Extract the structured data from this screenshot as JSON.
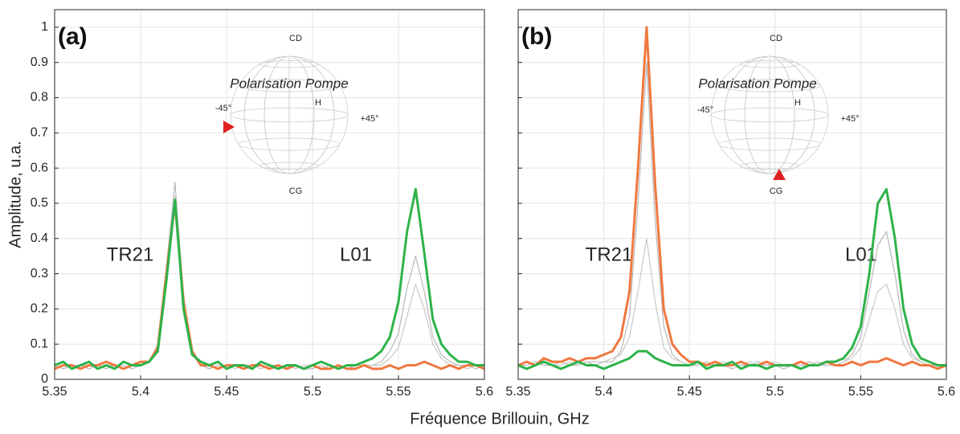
{
  "chart_data": [
    {
      "type": "line",
      "panel_label": "(a)",
      "annotations": {
        "peak1": "TR21",
        "peak2": "L01",
        "sphere_title": "Polarisation Pompe",
        "top": "CD",
        "bottom": "CG",
        "h": "H",
        "minus45": "-45°",
        "plus45": "+45°"
      },
      "x": [
        5.35,
        5.355,
        5.36,
        5.365,
        5.37,
        5.375,
        5.38,
        5.385,
        5.39,
        5.395,
        5.4,
        5.405,
        5.41,
        5.415,
        5.42,
        5.425,
        5.43,
        5.435,
        5.44,
        5.445,
        5.45,
        5.455,
        5.46,
        5.465,
        5.47,
        5.475,
        5.48,
        5.485,
        5.49,
        5.495,
        5.5,
        5.505,
        5.51,
        5.515,
        5.52,
        5.525,
        5.53,
        5.535,
        5.54,
        5.545,
        5.55,
        5.555,
        5.56,
        5.565,
        5.57,
        5.575,
        5.58,
        5.585,
        5.59,
        5.595,
        5.6
      ],
      "series": [
        {
          "color": "#b8b8b8",
          "values": [
            0.04,
            0.03,
            0.04,
            0.04,
            0.03,
            0.04,
            0.03,
            0.04,
            0.04,
            0.03,
            0.04,
            0.05,
            0.1,
            0.32,
            0.56,
            0.24,
            0.07,
            0.04,
            0.03,
            0.04,
            0.03,
            0.04,
            0.03,
            0.04,
            0.03,
            0.04,
            0.04,
            0.03,
            0.04,
            0.03,
            0.03,
            0.04,
            0.03,
            0.04,
            0.03,
            0.04,
            0.04,
            0.04,
            0.05,
            0.08,
            0.13,
            0.26,
            0.35,
            0.25,
            0.12,
            0.07,
            0.05,
            0.04,
            0.04,
            0.03,
            0.04
          ]
        },
        {
          "color": "#c8c8c8",
          "values": [
            0.03,
            0.04,
            0.03,
            0.04,
            0.04,
            0.03,
            0.04,
            0.04,
            0.03,
            0.04,
            0.04,
            0.05,
            0.09,
            0.3,
            0.52,
            0.22,
            0.07,
            0.04,
            0.04,
            0.03,
            0.04,
            0.03,
            0.04,
            0.04,
            0.03,
            0.04,
            0.03,
            0.04,
            0.03,
            0.04,
            0.04,
            0.03,
            0.04,
            0.03,
            0.04,
            0.03,
            0.04,
            0.04,
            0.04,
            0.06,
            0.09,
            0.18,
            0.27,
            0.2,
            0.1,
            0.06,
            0.04,
            0.04,
            0.03,
            0.04,
            0.04
          ]
        },
        {
          "color": "#f07840",
          "values": [
            0.03,
            0.04,
            0.04,
            0.03,
            0.04,
            0.04,
            0.05,
            0.04,
            0.03,
            0.04,
            0.05,
            0.05,
            0.09,
            0.3,
            0.5,
            0.22,
            0.08,
            0.04,
            0.04,
            0.03,
            0.04,
            0.04,
            0.03,
            0.04,
            0.04,
            0.03,
            0.04,
            0.03,
            0.04,
            0.03,
            0.04,
            0.03,
            0.03,
            0.04,
            0.03,
            0.03,
            0.04,
            0.03,
            0.03,
            0.04,
            0.03,
            0.04,
            0.04,
            0.05,
            0.04,
            0.03,
            0.04,
            0.03,
            0.04,
            0.04,
            0.03
          ]
        },
        {
          "color": "#2db34a",
          "values": [
            0.04,
            0.05,
            0.03,
            0.04,
            0.05,
            0.03,
            0.04,
            0.03,
            0.05,
            0.04,
            0.04,
            0.05,
            0.08,
            0.28,
            0.51,
            0.2,
            0.07,
            0.05,
            0.04,
            0.05,
            0.03,
            0.04,
            0.04,
            0.03,
            0.05,
            0.04,
            0.03,
            0.04,
            0.04,
            0.03,
            0.04,
            0.05,
            0.04,
            0.03,
            0.04,
            0.04,
            0.05,
            0.06,
            0.08,
            0.12,
            0.22,
            0.42,
            0.54,
            0.36,
            0.17,
            0.1,
            0.07,
            0.05,
            0.05,
            0.04,
            0.04
          ]
        }
      ],
      "xlim": [
        5.35,
        5.6
      ],
      "xticks": [
        5.35,
        5.4,
        5.45,
        5.5,
        5.55,
        5.6
      ],
      "ylim": [
        0,
        1.05
      ],
      "yticks": [
        0,
        0.1,
        0.2,
        0.3,
        0.4,
        0.5,
        0.6,
        0.7,
        0.8,
        0.9,
        1
      ],
      "grid": true
    },
    {
      "type": "line",
      "panel_label": "(b)",
      "annotations": {
        "peak1": "TR21",
        "peak2": "L01",
        "sphere_title": "Polarisation Pompe",
        "top": "CD",
        "bottom": "CG",
        "h": "H",
        "minus45": "-45°",
        "plus45": "+45°"
      },
      "x": [
        5.35,
        5.355,
        5.36,
        5.365,
        5.37,
        5.375,
        5.38,
        5.385,
        5.39,
        5.395,
        5.4,
        5.405,
        5.41,
        5.415,
        5.42,
        5.425,
        5.43,
        5.435,
        5.44,
        5.445,
        5.45,
        5.455,
        5.46,
        5.465,
        5.47,
        5.475,
        5.48,
        5.485,
        5.49,
        5.495,
        5.5,
        5.505,
        5.51,
        5.515,
        5.52,
        5.525,
        5.53,
        5.535,
        5.54,
        5.545,
        5.55,
        5.555,
        5.56,
        5.565,
        5.57,
        5.575,
        5.58,
        5.585,
        5.59,
        5.595,
        5.6
      ],
      "series": [
        {
          "color": "#b8b8b8",
          "values": [
            0.04,
            0.04,
            0.05,
            0.04,
            0.04,
            0.05,
            0.04,
            0.04,
            0.05,
            0.04,
            0.05,
            0.05,
            0.08,
            0.18,
            0.5,
            0.9,
            0.45,
            0.15,
            0.07,
            0.05,
            0.04,
            0.04,
            0.05,
            0.04,
            0.04,
            0.03,
            0.04,
            0.04,
            0.05,
            0.04,
            0.04,
            0.03,
            0.04,
            0.04,
            0.05,
            0.04,
            0.04,
            0.04,
            0.05,
            0.07,
            0.12,
            0.25,
            0.38,
            0.42,
            0.3,
            0.14,
            0.07,
            0.05,
            0.04,
            0.04,
            0.04
          ]
        },
        {
          "color": "#c8c8c8",
          "values": [
            0.04,
            0.05,
            0.04,
            0.05,
            0.04,
            0.04,
            0.05,
            0.04,
            0.05,
            0.05,
            0.05,
            0.06,
            0.07,
            0.12,
            0.25,
            0.4,
            0.22,
            0.09,
            0.06,
            0.05,
            0.04,
            0.05,
            0.04,
            0.04,
            0.05,
            0.04,
            0.04,
            0.05,
            0.04,
            0.04,
            0.05,
            0.04,
            0.04,
            0.04,
            0.04,
            0.05,
            0.04,
            0.04,
            0.05,
            0.06,
            0.09,
            0.17,
            0.25,
            0.27,
            0.2,
            0.1,
            0.06,
            0.05,
            0.04,
            0.04,
            0.04
          ]
        },
        {
          "color": "#f07840",
          "values": [
            0.04,
            0.05,
            0.04,
            0.06,
            0.05,
            0.05,
            0.06,
            0.05,
            0.06,
            0.06,
            0.07,
            0.08,
            0.12,
            0.25,
            0.6,
            1.0,
            0.55,
            0.2,
            0.1,
            0.07,
            0.05,
            0.05,
            0.04,
            0.05,
            0.04,
            0.04,
            0.05,
            0.04,
            0.04,
            0.05,
            0.04,
            0.04,
            0.04,
            0.05,
            0.04,
            0.04,
            0.05,
            0.04,
            0.04,
            0.05,
            0.04,
            0.05,
            0.05,
            0.06,
            0.05,
            0.04,
            0.05,
            0.04,
            0.04,
            0.03,
            0.04
          ]
        },
        {
          "color": "#2db34a",
          "values": [
            0.04,
            0.03,
            0.04,
            0.05,
            0.04,
            0.03,
            0.04,
            0.05,
            0.04,
            0.04,
            0.03,
            0.04,
            0.05,
            0.06,
            0.08,
            0.08,
            0.06,
            0.05,
            0.04,
            0.04,
            0.04,
            0.05,
            0.03,
            0.04,
            0.04,
            0.05,
            0.03,
            0.04,
            0.04,
            0.03,
            0.04,
            0.04,
            0.04,
            0.03,
            0.04,
            0.04,
            0.05,
            0.05,
            0.06,
            0.09,
            0.15,
            0.3,
            0.5,
            0.54,
            0.4,
            0.2,
            0.1,
            0.06,
            0.05,
            0.04,
            0.04
          ]
        }
      ],
      "xlim": [
        5.35,
        5.6
      ],
      "xticks": [
        5.35,
        5.4,
        5.45,
        5.5,
        5.55,
        5.6
      ],
      "ylim": [
        0,
        1.05
      ],
      "yticks": [
        0,
        0.1,
        0.2,
        0.3,
        0.4,
        0.5,
        0.6,
        0.7,
        0.8,
        0.9,
        1
      ],
      "ytick_labels": false,
      "grid": true
    }
  ],
  "x_label": "Fréquence Brillouin, GHz",
  "y_label": "Amplitude, u.a."
}
